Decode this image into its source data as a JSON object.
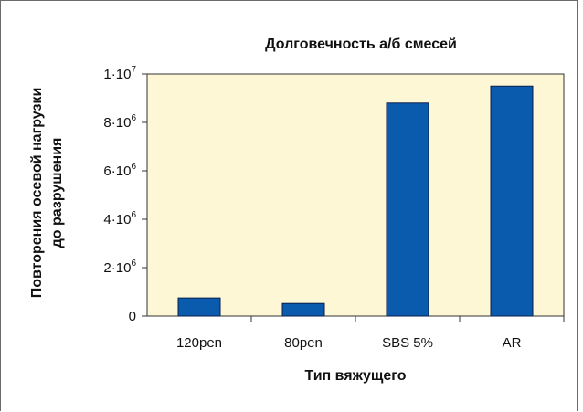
{
  "chart_data": {
    "type": "bar",
    "title": "Долговечность а/б смесей",
    "xlabel": "Тип вяжущего",
    "ylabel_lines": [
      "Повторения осевой нагрузки",
      "до разрушения"
    ],
    "categories": [
      "120pen",
      "80pen",
      "SBS 5%",
      "AR"
    ],
    "values": [
      750000,
      520000,
      8800000,
      9500000
    ],
    "ylim": [
      0,
      10000000
    ],
    "y_ticks": [
      {
        "value": 0,
        "mant": "0",
        "exp": ""
      },
      {
        "value": 2000000,
        "mant": "2·10",
        "exp": "6"
      },
      {
        "value": 4000000,
        "mant": "4·10",
        "exp": "6"
      },
      {
        "value": 6000000,
        "mant": "6·10",
        "exp": "6"
      },
      {
        "value": 8000000,
        "mant": "8·10",
        "exp": "6"
      },
      {
        "value": 10000000,
        "mant": "1·10",
        "exp": "7"
      }
    ],
    "colors": {
      "bar": "#0a5aae",
      "bar_stroke": "#0b1f4a",
      "plot_bg": "#fdf7d6"
    },
    "grid": false,
    "legend": "none"
  }
}
